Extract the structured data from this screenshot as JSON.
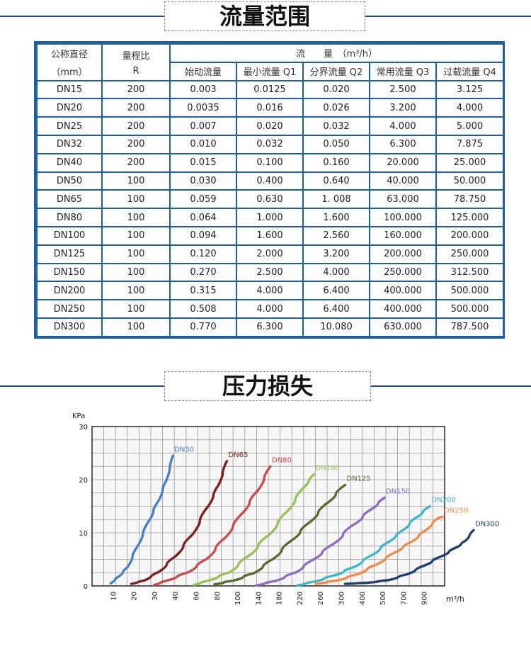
{
  "section1": {
    "title": "流量范围"
  },
  "section2": {
    "title": "压力损失"
  },
  "table": {
    "head": {
      "nominal": "公称直径",
      "nominal_unit": "（mm）",
      "ratio": "量程比",
      "ratio_sym": "R",
      "flow": "流　　量　（m³/h）",
      "cols": [
        "始动流量",
        "最小流量 Q1",
        "分界流量 Q2",
        "常用流量 Q3",
        "过载流量 Q4"
      ]
    },
    "rows": [
      [
        "DN15",
        "200",
        "0.003",
        "0.0125",
        "0.020",
        "2.500",
        "3.125"
      ],
      [
        "DN20",
        "200",
        "0.0035",
        "0.016",
        "0.026",
        "3.200",
        "4.000"
      ],
      [
        "DN25",
        "200",
        "0.007",
        "0.020",
        "0.032",
        "4.000",
        "5.000"
      ],
      [
        "DN32",
        "200",
        "0.010",
        "0.032",
        "0.050",
        "6.300",
        "7.875"
      ],
      [
        "DN40",
        "200",
        "0.015",
        "0.100",
        "0.160",
        "20.000",
        "25.000"
      ],
      [
        "DN50",
        "100",
        "0.030",
        "0.400",
        "0.640",
        "40.000",
        "50.000"
      ],
      [
        "DN65",
        "100",
        "0.059",
        "0.630",
        "1. 008",
        "63.000",
        "78.750"
      ],
      [
        "DN80",
        "100",
        "0.064",
        "1.000",
        "1.600",
        "100.000",
        "125.000"
      ],
      [
        "DN100",
        "100",
        "0.094",
        "1.600",
        "2.560",
        "160.000",
        "200.000"
      ],
      [
        "DN125",
        "100",
        "0.120",
        "2.000",
        "3.200",
        "200.000",
        "250.000"
      ],
      [
        "DN150",
        "100",
        "0.270",
        "2.500",
        "4.000",
        "250.000",
        "312.500"
      ],
      [
        "DN200",
        "100",
        "0.315",
        "4.000",
        "6.400",
        "400.000",
        "500.000"
      ],
      [
        "DN250",
        "100",
        "0.508",
        "4.000",
        "6.400",
        "400.000",
        "500.000"
      ],
      [
        "DN300",
        "100",
        "0.770",
        "6.300",
        "10.080",
        "630.000",
        "787.500"
      ]
    ]
  },
  "chart_data": {
    "type": "line",
    "ylabel": "KPa",
    "xlabel": "m³/h",
    "ylim": [
      0,
      30
    ],
    "y_ticks": [
      "0",
      "10",
      "20",
      "30"
    ],
    "x_ticks": [
      "10",
      "20",
      "30",
      "40",
      "60",
      "80",
      "100",
      "140",
      "180",
      "220",
      "260",
      "300",
      "400",
      "500",
      "700",
      "900"
    ],
    "grid": true,
    "series": [
      {
        "name": "DN50",
        "color": "#4a7fc0",
        "points": [
          [
            -0.1,
            0.5
          ],
          [
            0.3,
            1.8
          ],
          [
            0.7,
            3.5
          ],
          [
            1.2,
            7.5
          ],
          [
            1.7,
            12
          ],
          [
            2.2,
            16
          ],
          [
            2.6,
            20
          ],
          [
            2.9,
            24.5
          ]
        ]
      },
      {
        "name": "DN65",
        "color": "#7a2020",
        "points": [
          [
            0.9,
            0.4
          ],
          [
            1.5,
            1
          ],
          [
            2.2,
            2.6
          ],
          [
            3,
            5.5
          ],
          [
            3.8,
            9.5
          ],
          [
            4.6,
            15
          ],
          [
            5.1,
            19
          ],
          [
            5.5,
            23.5
          ]
        ]
      },
      {
        "name": "DN80",
        "color": "#c94a4f",
        "points": [
          [
            2,
            0.2
          ],
          [
            2.6,
            1
          ],
          [
            3.6,
            2.5
          ],
          [
            4.5,
            5
          ],
          [
            5.4,
            9
          ],
          [
            6.2,
            13.5
          ],
          [
            7,
            18
          ],
          [
            7.6,
            22.5
          ]
        ]
      },
      {
        "name": "DN100",
        "color": "#98c05a",
        "points": [
          [
            3.9,
            0.2
          ],
          [
            4.6,
            1
          ],
          [
            5.6,
            2.5
          ],
          [
            6.5,
            5.5
          ],
          [
            7.5,
            9.5
          ],
          [
            8.4,
            14
          ],
          [
            9.2,
            18.5
          ],
          [
            9.7,
            21
          ]
        ]
      },
      {
        "name": "DN125",
        "color": "#556b2f",
        "points": [
          [
            4.9,
            0.3
          ],
          [
            5.8,
            1
          ],
          [
            6.8,
            2.4
          ],
          [
            7.7,
            5
          ],
          [
            8.6,
            8.5
          ],
          [
            9.5,
            12
          ],
          [
            10.3,
            15.5
          ],
          [
            11.2,
            19
          ]
        ]
      },
      {
        "name": "DN150",
        "color": "#8f6cbd",
        "points": [
          [
            6.9,
            0.1
          ],
          [
            7.8,
            0.9
          ],
          [
            8.8,
            2.5
          ],
          [
            9.6,
            4.8
          ],
          [
            10.6,
            7.8
          ],
          [
            11.6,
            11.5
          ],
          [
            12.5,
            14.5
          ],
          [
            13.1,
            16.6
          ]
        ]
      },
      {
        "name": "DN200",
        "color": "#3fb6c6",
        "points": [
          [
            8.9,
            0.1
          ],
          [
            9.7,
            0.8
          ],
          [
            10.7,
            2
          ],
          [
            11.6,
            3.5
          ],
          [
            12.5,
            5.8
          ],
          [
            13.3,
            8.3
          ],
          [
            14,
            10.5
          ],
          [
            14.6,
            12.8
          ],
          [
            15.3,
            15
          ]
        ]
      },
      {
        "name": "DN250",
        "color": "#f08a4b",
        "points": [
          [
            9.8,
            0.4
          ],
          [
            10.8,
            1
          ],
          [
            11.8,
            2.2
          ],
          [
            12.7,
            4
          ],
          [
            13.6,
            6.3
          ],
          [
            14.4,
            8.3
          ],
          [
            15.1,
            10.5
          ],
          [
            15.7,
            12.8
          ],
          [
            15.9,
            13
          ]
        ]
      },
      {
        "name": "DN300",
        "color": "#1f3f6f",
        "points": [
          [
            11.2,
            0.4
          ],
          [
            12.3,
            0.6
          ],
          [
            13.3,
            1.1
          ],
          [
            14.2,
            2.2
          ],
          [
            15,
            3.8
          ],
          [
            15.8,
            5.5
          ],
          [
            16.6,
            7.3
          ],
          [
            17,
            8.5
          ],
          [
            17.4,
            10.5
          ]
        ]
      }
    ]
  }
}
